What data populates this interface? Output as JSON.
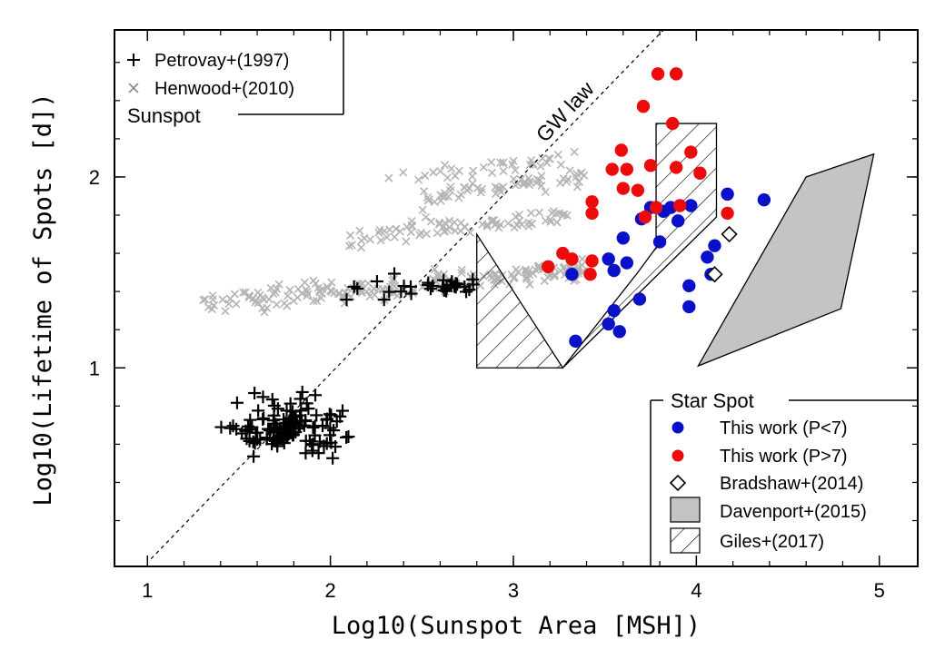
{
  "chart_data": {
    "type": "scatter",
    "xlabel": "Log10(Sunspot Area [MSH])",
    "ylabel": "Log10(Lifetime of Spots [d])",
    "xlim": [
      0.82,
      5.21
    ],
    "ylim": [
      -0.04,
      2.77
    ],
    "x_ticks": [
      "1",
      "2",
      "3",
      "4",
      "5"
    ],
    "y_ticks": [
      "1",
      "2"
    ],
    "x_tick_values": [
      1,
      2,
      3,
      4,
      5
    ],
    "y_tick_values": [
      1,
      2
    ],
    "grid": false,
    "annotations": [
      {
        "text": "GW law",
        "x": 3.75,
        "y": 2.25
      }
    ],
    "legend_sunspot": {
      "title": "Sunspot",
      "placement": "top-left",
      "entries": [
        "Petrovay+(1997)",
        "Henwood+(2010)"
      ]
    },
    "legend_starspot": {
      "title": "Star Spot",
      "placement": "bottom-right",
      "entries": [
        "This work (P<7)",
        "This work (P>7)",
        "Bradshaw+(2014)",
        "Davenport+(2015)",
        "Giles+(2017)"
      ]
    },
    "colors": {
      "petrovay": "#000000",
      "henwood": "#b4b4b4",
      "p_lt_7": "#0a10c8",
      "p_gt_7": "#ee0a0a",
      "davenport_fill": "#c4c4c4"
    },
    "gw_law": {
      "x": [
        1.02,
        3.82
      ],
      "y": [
        0.0,
        2.77
      ]
    },
    "series": [
      {
        "name": "This work (P<7)",
        "x": [
          3.34,
          3.32,
          3.55,
          3.52,
          3.58,
          3.52,
          3.55,
          3.6,
          3.69,
          3.7,
          3.62,
          3.75,
          3.8,
          3.82,
          3.86,
          3.9,
          3.96,
          3.96,
          3.97,
          4.06,
          4.1,
          4.17,
          4.37,
          4.08
        ],
        "y": [
          1.14,
          1.49,
          1.3,
          1.23,
          1.19,
          1.57,
          1.51,
          1.68,
          1.36,
          1.78,
          1.55,
          1.84,
          1.66,
          1.82,
          1.84,
          1.77,
          1.32,
          1.43,
          1.85,
          1.58,
          1.64,
          1.91,
          1.88,
          1.49
        ]
      },
      {
        "name": "This work (P>7)",
        "x": [
          3.19,
          3.27,
          3.32,
          3.43,
          3.42,
          3.43,
          3.43,
          3.54,
          3.59,
          3.6,
          3.62,
          3.68,
          3.71,
          3.72,
          3.75,
          3.78,
          3.79,
          3.87,
          3.89,
          3.91,
          3.97,
          4.02,
          4.17,
          3.89
        ],
        "y": [
          1.53,
          1.6,
          1.57,
          1.56,
          1.49,
          1.81,
          1.87,
          2.04,
          2.14,
          1.94,
          2.04,
          1.93,
          2.37,
          1.79,
          2.06,
          1.84,
          2.54,
          2.28,
          2.54,
          1.85,
          2.13,
          2.02,
          1.81,
          2.05
        ]
      },
      {
        "name": "Bradshaw+(2014)",
        "x": [
          4.18,
          4.1
        ],
        "y": [
          1.7,
          1.49
        ]
      },
      {
        "name": "Davenport+(2015)",
        "polygon_x": [
          4.01,
          4.6,
          4.97,
          4.79
        ],
        "polygon_y": [
          1.01,
          2.0,
          2.12,
          1.31
        ]
      },
      {
        "name": "Giles+(2017)",
        "polygon_x": [
          2.8,
          2.8,
          3.27,
          4.11,
          4.11,
          3.78,
          3.78,
          3.68,
          3.27
        ],
        "polygon_y": [
          1.7,
          1.0,
          1.0,
          1.79,
          2.28,
          2.28,
          1.63,
          1.5,
          1.0
        ]
      }
    ]
  }
}
